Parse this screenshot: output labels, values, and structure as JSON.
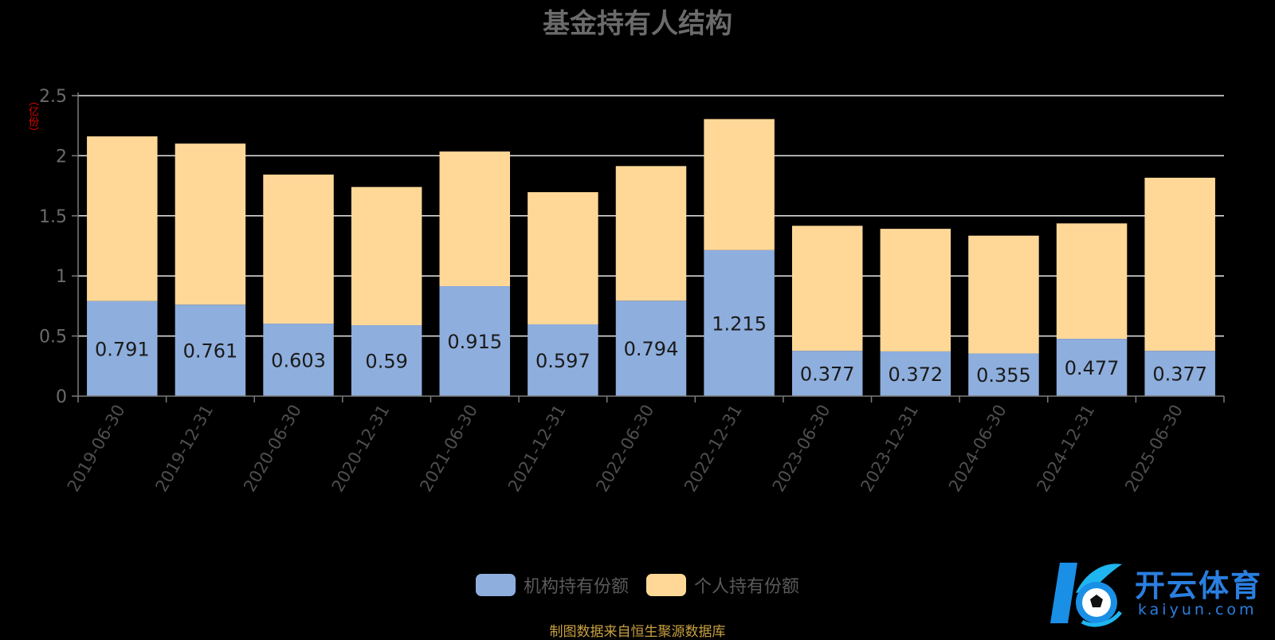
{
  "title": "基金持有人结构",
  "unit": "（亿份）",
  "source": "制图数据来自恒生聚源数据库",
  "logo": {
    "name": "开云体育",
    "domain": "kaiyun.com"
  },
  "chart_data": {
    "type": "bar",
    "stacked": true,
    "title": "基金持有人结构",
    "ylabel": "（亿份）",
    "ylim": [
      0,
      2.5
    ],
    "yticks": [
      "0",
      "0.5",
      "1",
      "1.5",
      "2",
      "2.5"
    ],
    "ytick_values": [
      0,
      0.5,
      1,
      1.5,
      2,
      2.5
    ],
    "grid": true,
    "legend_position": "bottom",
    "categories": [
      "2019-06-30",
      "2019-12-31",
      "2020-06-30",
      "2020-12-31",
      "2021-06-30",
      "2021-12-31",
      "2022-06-30",
      "2022-12-31",
      "2023-06-30",
      "2023-12-31",
      "2024-06-30",
      "2024-12-31",
      "2025-06-30"
    ],
    "series": [
      {
        "name": "机构持有份额",
        "color": "#8eaedd",
        "values": [
          0.791,
          0.761,
          0.603,
          0.59,
          0.915,
          0.597,
          0.794,
          1.215,
          0.377,
          0.372,
          0.355,
          0.477,
          0.377
        ],
        "labels": [
          "0.791",
          "0.761",
          "0.603",
          "0.59",
          "0.915",
          "0.597",
          "0.794",
          "1.215",
          "0.377",
          "0.372",
          "0.355",
          "0.477",
          "0.377"
        ]
      },
      {
        "name": "个人持有份额",
        "color": "#ffd898",
        "values": [
          1.37,
          1.34,
          1.24,
          1.15,
          1.12,
          1.1,
          1.12,
          1.09,
          1.04,
          1.02,
          0.98,
          0.96,
          1.44
        ]
      }
    ]
  }
}
